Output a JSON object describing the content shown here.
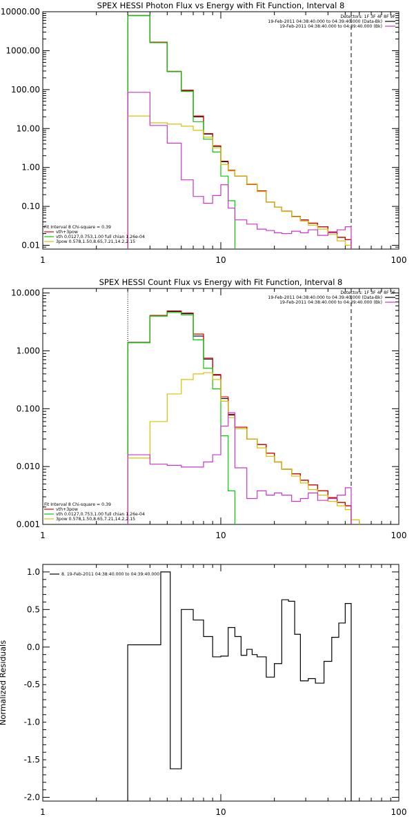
{
  "chart_data": [
    {
      "type": "line",
      "title": "SPEX HESSI Photon Flux vs Energy with Fit Function, Interval 8",
      "xscale": "log",
      "yscale": "log",
      "xlim": [
        1,
        100
      ],
      "ylim": [
        0.008,
        10000
      ],
      "x_ticks": [
        "1",
        "10",
        "100"
      ],
      "y_ticks": [
        {
          "v": 10000,
          "label": "10000.00"
        },
        {
          "v": 1000,
          "label": "1000.00"
        },
        {
          "v": 100,
          "label": "100.00"
        },
        {
          "v": 10,
          "label": "10.00"
        },
        {
          "v": 1,
          "label": "1.00"
        },
        {
          "v": 0.1,
          "label": "0.10"
        },
        {
          "v": 0.01,
          "label": "0.01"
        }
      ],
      "vlines": [
        {
          "x": 3.0,
          "style": "dotted"
        },
        {
          "x": 54,
          "style": "dashed"
        }
      ],
      "legend_topright": {
        "detectors": "Detectors: 1F 3F 4F 8F 9F",
        "entries": [
          {
            "label": "19-Feb-2011 04:38:40.000 to 04:39:40.000 (Data-Bk)",
            "color": "#000000"
          },
          {
            "label": "19-Feb-2011 04:38:40.000 to 04:39:40.000 (Bk)",
            "color": "#cc33cc"
          }
        ]
      },
      "legend_bottomleft": {
        "header": "Fit Interval  8   Chi-square = 0.39",
        "entries": [
          {
            "label": "vth+3pow",
            "color": "#e00000"
          },
          {
            "label": "vth 0.0127,0.753,1.00  full chian 1.26e-04",
            "color": "#00cc00"
          },
          {
            "label": "3pow 0.578,1.50,8.65,7.21,14.2,2.15",
            "color": "#d8c000"
          }
        ]
      },
      "series": [
        {
          "color": "#000000",
          "edges": [
            3.0,
            4.0,
            5.0,
            6.0,
            7.0,
            8.0,
            9.0,
            10.0,
            11.0,
            12.0,
            14.0,
            16.0,
            18.0,
            20.0,
            22.0,
            25.0,
            28.0,
            31.0,
            35.0,
            40.0,
            45.0,
            50.0,
            54.0
          ],
          "values": [
            8000,
            1650,
            290,
            95,
            20,
            7.2,
            3.5,
            1.4,
            0.82,
            0.6,
            0.37,
            0.25,
            0.13,
            0.095,
            0.075,
            0.055,
            0.045,
            0.037,
            0.03,
            0.022,
            0.016,
            0.014
          ]
        },
        {
          "color": "#e00000",
          "edges": [
            3.0,
            4.0,
            5.0,
            6.0,
            7.0,
            8.0,
            9.0,
            10.0,
            11.0,
            12.0,
            14.0,
            16.0,
            18.0,
            20.0,
            22.0,
            25.0,
            28.0,
            31.0,
            35.0,
            40.0,
            45.0,
            50.0,
            54.0
          ],
          "values": [
            8000,
            1650,
            295,
            97,
            21,
            7.4,
            3.6,
            1.45,
            0.85,
            0.6,
            0.37,
            0.25,
            0.13,
            0.095,
            0.075,
            0.055,
            0.045,
            0.037,
            0.03,
            0.022,
            0.016,
            0.014
          ]
        },
        {
          "color": "#00cc00",
          "edges": [
            3.0,
            4.0,
            5.0,
            6.0,
            7.0,
            8.0,
            9.0,
            10.0,
            11.0,
            12.0
          ],
          "values": [
            8000,
            1600,
            290,
            90,
            15,
            5.3,
            2.5,
            0.6,
            0.14,
            0.005
          ]
        },
        {
          "color": "#d8c000",
          "edges": [
            3.0,
            4.0,
            5.0,
            6.0,
            7.0,
            8.0,
            9.0,
            10.0,
            11.0,
            12.0,
            14.0,
            16.0,
            18.0,
            20.0,
            22.0,
            25.0,
            28.0,
            31.0,
            35.0,
            40.0,
            45.0,
            50.0,
            54.0
          ],
          "values": [
            21,
            14,
            13,
            11.5,
            9.0,
            6.0,
            3.2,
            1.2,
            0.82,
            0.6,
            0.38,
            0.24,
            0.13,
            0.095,
            0.074,
            0.054,
            0.042,
            0.033,
            0.026,
            0.019,
            0.013,
            0.01
          ]
        },
        {
          "color": "#cc33cc",
          "edges": [
            3.0,
            4.0,
            5.0,
            6.0,
            7.0,
            8.0,
            9.0,
            10.0,
            11.0,
            12.0,
            14.0,
            16.0,
            18.0,
            20.0,
            22.0,
            25.0,
            28.0,
            31.0,
            35.0,
            40.0,
            45.0,
            50.0,
            54.0
          ],
          "values": [
            85,
            12,
            4.2,
            0.48,
            0.18,
            0.12,
            0.19,
            0.36,
            0.09,
            0.045,
            0.035,
            0.026,
            0.024,
            0.021,
            0.02,
            0.023,
            0.021,
            0.025,
            0.018,
            0.021,
            0.025,
            0.03
          ]
        }
      ]
    },
    {
      "type": "line",
      "title": "SPEX HESSI Count Flux vs Energy with Fit Function, Interval 8",
      "xscale": "log",
      "yscale": "log",
      "xlim": [
        1,
        100
      ],
      "ylim": [
        0.001,
        12
      ],
      "x_ticks": [
        "1",
        "10",
        "100"
      ],
      "y_ticks": [
        {
          "v": 10,
          "label": "10.000"
        },
        {
          "v": 1,
          "label": "1.000"
        },
        {
          "v": 0.1,
          "label": "0.100"
        },
        {
          "v": 0.01,
          "label": "0.010"
        },
        {
          "v": 0.001,
          "label": "0.001"
        }
      ],
      "vlines": [
        {
          "x": 3.0,
          "style": "dotted"
        },
        {
          "x": 54,
          "style": "dashed"
        }
      ],
      "legend_topright": {
        "detectors": "Detectors: 1F 3F 4F 8F 9F",
        "entries": [
          {
            "label": "19-Feb-2011 04:38:40.000 to 04:39:40.000 (Data-Bk)",
            "color": "#000000"
          },
          {
            "label": "19-Feb-2011 04:38:40.000 to 04:39:40.000 (Bk)",
            "color": "#cc33cc"
          }
        ]
      },
      "legend_bottomleft": {
        "header": "Fit Interval  8   Chi-square = 0.39",
        "entries": [
          {
            "label": "vth+3pow",
            "color": "#e00000"
          },
          {
            "label": "vth 0.0127,0.753,1.00  full chian 1.26e-04",
            "color": "#00cc00"
          },
          {
            "label": "3pow 0.578,1.50,8.65,7.21,14.2,2.15",
            "color": "#d8c000"
          }
        ]
      },
      "series": [
        {
          "color": "#000000",
          "edges": [
            3.0,
            4.0,
            5.0,
            6.0,
            7.0,
            8.0,
            9.0,
            10.0,
            11.0,
            12.0,
            14.0,
            16.0,
            18.0,
            20.0,
            22.0,
            25.0,
            28.0,
            31.0,
            35.0,
            40.0,
            45.0,
            50.0,
            54.0
          ],
          "values": [
            1.4,
            4.0,
            4.8,
            4.4,
            1.8,
            0.72,
            0.38,
            0.15,
            0.078,
            0.048,
            0.03,
            0.024,
            0.017,
            0.012,
            0.009,
            0.0075,
            0.0058,
            0.0048,
            0.0038,
            0.0029,
            0.0024,
            0.0021
          ]
        },
        {
          "color": "#e00000",
          "edges": [
            3.0,
            4.0,
            5.0,
            6.0,
            7.0,
            8.0,
            9.0,
            10.0,
            11.0,
            12.0,
            14.0,
            16.0,
            18.0,
            20.0,
            22.0,
            25.0,
            28.0,
            31.0,
            35.0,
            40.0,
            45.0,
            50.0,
            54.0
          ],
          "values": [
            1.4,
            4.1,
            4.9,
            4.5,
            1.95,
            0.75,
            0.39,
            0.16,
            0.08,
            0.048,
            0.03,
            0.024,
            0.017,
            0.012,
            0.009,
            0.0075,
            0.0058,
            0.0048,
            0.0038,
            0.0029,
            0.0024,
            0.0021
          ]
        },
        {
          "color": "#00cc00",
          "edges": [
            3.0,
            4.0,
            5.0,
            6.0,
            7.0,
            8.0,
            9.0,
            10.0,
            11.0,
            12.0
          ],
          "values": [
            1.38,
            4.0,
            4.6,
            4.2,
            1.55,
            0.5,
            0.22,
            0.034,
            0.0038,
            0.0009
          ]
        },
        {
          "color": "#d8c000",
          "edges": [
            3.0,
            4.0,
            5.0,
            6.0,
            7.0,
            8.0,
            9.0,
            10.0,
            11.0,
            12.0,
            14.0,
            16.0,
            18.0,
            20.0,
            22.0,
            25.0,
            28.0,
            31.0,
            35.0,
            40.0,
            45.0,
            50.0,
            54.0,
            60.0,
            66.0
          ],
          "values": [
            0.014,
            0.06,
            0.18,
            0.32,
            0.4,
            0.42,
            0.32,
            0.135,
            0.07,
            0.045,
            0.03,
            0.021,
            0.015,
            0.012,
            0.009,
            0.0068,
            0.0052,
            0.004,
            0.0032,
            0.0025,
            0.0021,
            0.0018,
            0.0012,
            0.0009
          ]
        },
        {
          "color": "#cc33cc",
          "edges": [
            3.0,
            4.0,
            5.0,
            6.0,
            7.0,
            8.0,
            9.0,
            10.0,
            11.0,
            12.0,
            14.0,
            16.0,
            18.0,
            20.0,
            22.0,
            25.0,
            28.0,
            31.0,
            35.0,
            40.0,
            45.0,
            50.0,
            54.0
          ],
          "values": [
            0.016,
            0.011,
            0.0105,
            0.0098,
            0.0098,
            0.012,
            0.016,
            0.05,
            0.085,
            0.0095,
            0.0028,
            0.0038,
            0.0032,
            0.0035,
            0.0032,
            0.0025,
            0.0028,
            0.0035,
            0.0026,
            0.0028,
            0.0032,
            0.0043
          ]
        }
      ]
    },
    {
      "type": "line",
      "ylabel": "Normalized Residuals",
      "xscale": "log",
      "yscale": "linear",
      "xlim": [
        1,
        100
      ],
      "ylim": [
        -2.05,
        1.1
      ],
      "x_ticks": [
        "1",
        "10",
        "100"
      ],
      "y_ticks": [
        {
          "v": 1.0,
          "label": "1.0"
        },
        {
          "v": 0.5,
          "label": "0.5"
        },
        {
          "v": 0.0,
          "label": "0.0"
        },
        {
          "v": -0.5,
          "label": "-0.5"
        },
        {
          "v": -1.0,
          "label": "-1.0"
        },
        {
          "v": -1.5,
          "label": "-1.5"
        },
        {
          "v": -2.0,
          "label": "-2.0"
        }
      ],
      "legend": {
        "label": "8. 19-Feb-2011 04:38:40.000 to 04:39:40.000",
        "color": "#000000"
      },
      "series": [
        {
          "color": "#000000",
          "edges": [
            3.0,
            4.0,
            4.6,
            5.2,
            6.0,
            7.0,
            8.0,
            9.0,
            10.0,
            11.0,
            12.0,
            13.0,
            14.0,
            15.0,
            16.0,
            18.0,
            20.0,
            22.0,
            24.0,
            26.0,
            28.0,
            31.0,
            34.0,
            38.0,
            42.0,
            46.0,
            50.0,
            54.0
          ],
          "values": [
            0.03,
            0.03,
            1.0,
            -1.62,
            0.5,
            0.36,
            0.14,
            -0.13,
            -0.12,
            0.26,
            0.14,
            -0.11,
            -0.03,
            -0.1,
            -0.13,
            -0.4,
            -0.22,
            0.63,
            0.61,
            0.17,
            -0.45,
            -0.42,
            -0.48,
            -0.19,
            0.13,
            0.32,
            0.58
          ]
        }
      ]
    }
  ]
}
